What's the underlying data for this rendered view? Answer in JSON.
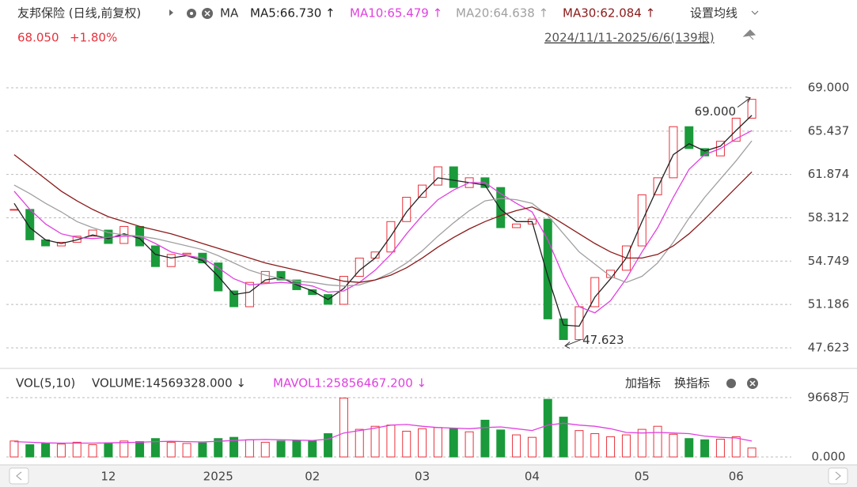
{
  "toolbar": {
    "ma_label": "MA",
    "settings": "设置均线",
    "price": "68.050",
    "change": "+1.80%",
    "range": "2024/11/11-2025/6/6(139根)",
    "add_indicator": "加指标",
    "switch_indicator": "换指标"
  },
  "chart_data": [
    {
      "type": "candlestick",
      "title": "友邦保险 (日线,前复权)",
      "categories": [
        null,
        null,
        null,
        null,
        null,
        null,
        "12",
        null,
        null,
        null,
        null,
        null,
        null,
        "2025",
        null,
        null,
        null,
        null,
        null,
        "02",
        null,
        null,
        null,
        null,
        null,
        null,
        "03",
        null,
        null,
        null,
        null,
        null,
        null,
        "04",
        null,
        null,
        null,
        null,
        null,
        null,
        "05",
        null,
        null,
        null,
        null,
        null,
        "06",
        null
      ],
      "values": [
        59.0,
        56.5,
        56.0,
        56.3,
        56.8,
        57.3,
        56.2,
        57.6,
        56.0,
        54.3,
        55.3,
        55.4,
        54.6,
        52.3,
        51.0,
        53.0,
        53.9,
        53.2,
        52.4,
        52.0,
        51.2,
        53.5,
        55.0,
        55.5,
        58.0,
        60.0,
        61.0,
        62.5,
        60.8,
        61.6,
        60.8,
        57.5,
        57.8,
        58.2,
        50.0,
        48.3,
        51.0,
        53.4,
        54.0,
        56.0,
        60.2,
        61.6,
        65.8,
        64.0,
        63.4,
        64.6,
        66.5,
        68.05
      ],
      "up_color": "#e8323c",
      "down_color": "#1a9a3a",
      "series": [
        {
          "name": "MA5:66.730 ↑",
          "color": "#222222",
          "values": [
            59.5,
            57.5,
            56.5,
            56.2,
            56.5,
            56.9,
            56.6,
            57.0,
            56.6,
            55.3,
            55.0,
            55.2,
            54.8,
            53.5,
            52.0,
            52.2,
            53.2,
            53.4,
            52.8,
            52.3,
            51.6,
            52.5,
            54.0,
            55.0,
            56.8,
            58.8,
            60.3,
            61.6,
            61.4,
            61.2,
            61.0,
            59.0,
            58.0,
            58.0,
            53.5,
            49.5,
            49.4,
            51.8,
            53.3,
            55.0,
            58.0,
            60.8,
            63.5,
            64.4,
            63.8,
            64.2,
            65.5,
            66.73
          ]
        },
        {
          "name": "MA10:65.479 ↑",
          "color": "#e040e0",
          "values": [
            60.5,
            59.0,
            57.8,
            57.0,
            56.7,
            56.6,
            56.7,
            56.8,
            56.8,
            56.2,
            55.5,
            55.2,
            55.0,
            54.2,
            53.3,
            52.8,
            52.9,
            53.0,
            52.9,
            52.7,
            52.2,
            52.3,
            53.0,
            54.0,
            55.3,
            57.0,
            58.5,
            59.8,
            60.6,
            61.2,
            61.2,
            60.3,
            59.5,
            58.8,
            56.5,
            53.5,
            51.0,
            50.5,
            51.5,
            53.3,
            55.5,
            57.5,
            60.0,
            62.3,
            63.5,
            64.0,
            64.8,
            65.479
          ]
        },
        {
          "name": "MA20:64.638 ↑",
          "color": "#a0a0a0",
          "values": [
            61.0,
            60.3,
            59.5,
            58.8,
            58.0,
            57.5,
            57.1,
            56.9,
            56.8,
            56.6,
            56.3,
            56.0,
            55.7,
            55.2,
            54.6,
            54.0,
            53.6,
            53.3,
            53.1,
            53.0,
            52.8,
            52.7,
            52.8,
            53.2,
            53.8,
            54.6,
            55.6,
            56.8,
            57.9,
            58.9,
            59.7,
            59.9,
            59.8,
            59.5,
            58.5,
            57.0,
            55.5,
            54.5,
            53.5,
            53.0,
            53.5,
            54.6,
            56.3,
            58.3,
            60.0,
            61.5,
            63.0,
            64.638
          ]
        },
        {
          "name": "MA30:62.084 ↑",
          "color": "#8b1a1a",
          "values": [
            63.5,
            62.5,
            61.5,
            60.5,
            59.7,
            59.0,
            58.4,
            58.0,
            57.6,
            57.3,
            57.0,
            56.6,
            56.2,
            55.8,
            55.4,
            55.0,
            54.6,
            54.3,
            54.0,
            53.7,
            53.4,
            53.1,
            53.0,
            53.2,
            53.6,
            54.2,
            55.0,
            55.9,
            56.7,
            57.4,
            58.0,
            58.5,
            58.9,
            59.2,
            58.6,
            57.8,
            57.0,
            56.2,
            55.5,
            55.0,
            55.0,
            55.3,
            56.0,
            57.0,
            58.2,
            59.5,
            60.8,
            62.084
          ]
        }
      ],
      "annotations": [
        "69.000",
        "47.623"
      ],
      "ylim": [
        46.32,
        70.04
      ],
      "yticks": [
        {
          "value": 69.0,
          "label": "69.000"
        },
        {
          "value": 65.437,
          "label": "65.437"
        },
        {
          "value": 61.874,
          "label": "61.874"
        },
        {
          "value": 58.312,
          "label": "58.312"
        },
        {
          "value": 54.749,
          "label": "54.749"
        },
        {
          "value": 51.186,
          "label": "51.186"
        },
        {
          "value": 47.623,
          "label": "47.623"
        }
      ],
      "grid": true
    },
    {
      "type": "bar",
      "title": "VOL(5,10)",
      "series": [
        {
          "name": "VOLUME:14569328.000 ↓",
          "color": "#333333",
          "values": [
            2600,
            2000,
            2200,
            2100,
            2400,
            2000,
            2300,
            2600,
            2500,
            3000,
            2400,
            2200,
            2300,
            3000,
            3200,
            2800,
            2400,
            2600,
            2700,
            2600,
            3800,
            9600,
            4500,
            5000,
            5200,
            4200,
            4600,
            4800,
            4600,
            4100,
            6000,
            4400,
            3600,
            3200,
            9400,
            6500,
            4300,
            3800,
            3300,
            3600,
            4500,
            5000,
            3700,
            3000,
            2800,
            2900,
            3300,
            1456.9
          ]
        },
        {
          "name": "MAVOL1:25856467.200 ↓",
          "color": "#e040e0",
          "values": [
            2500,
            2400,
            2300,
            2250,
            2250,
            2250,
            2300,
            2350,
            2400,
            2500,
            2550,
            2500,
            2450,
            2550,
            2700,
            2800,
            2850,
            2800,
            2750,
            2700,
            2900,
            3900,
            4300,
            4700,
            5200,
            5300,
            5000,
            4800,
            4700,
            4600,
            4800,
            4900,
            4600,
            4300,
            5200,
            5500,
            5200,
            5000,
            4600,
            4000,
            3900,
            4000,
            3900,
            3800,
            3400,
            3200,
            3100,
            2585.6
          ]
        }
      ],
      "ylim": [
        0,
        9668
      ],
      "yticks": [
        {
          "value": 9668,
          "label": "9668万"
        },
        {
          "value": 0,
          "label": "0.000"
        }
      ],
      "grid": true
    }
  ]
}
